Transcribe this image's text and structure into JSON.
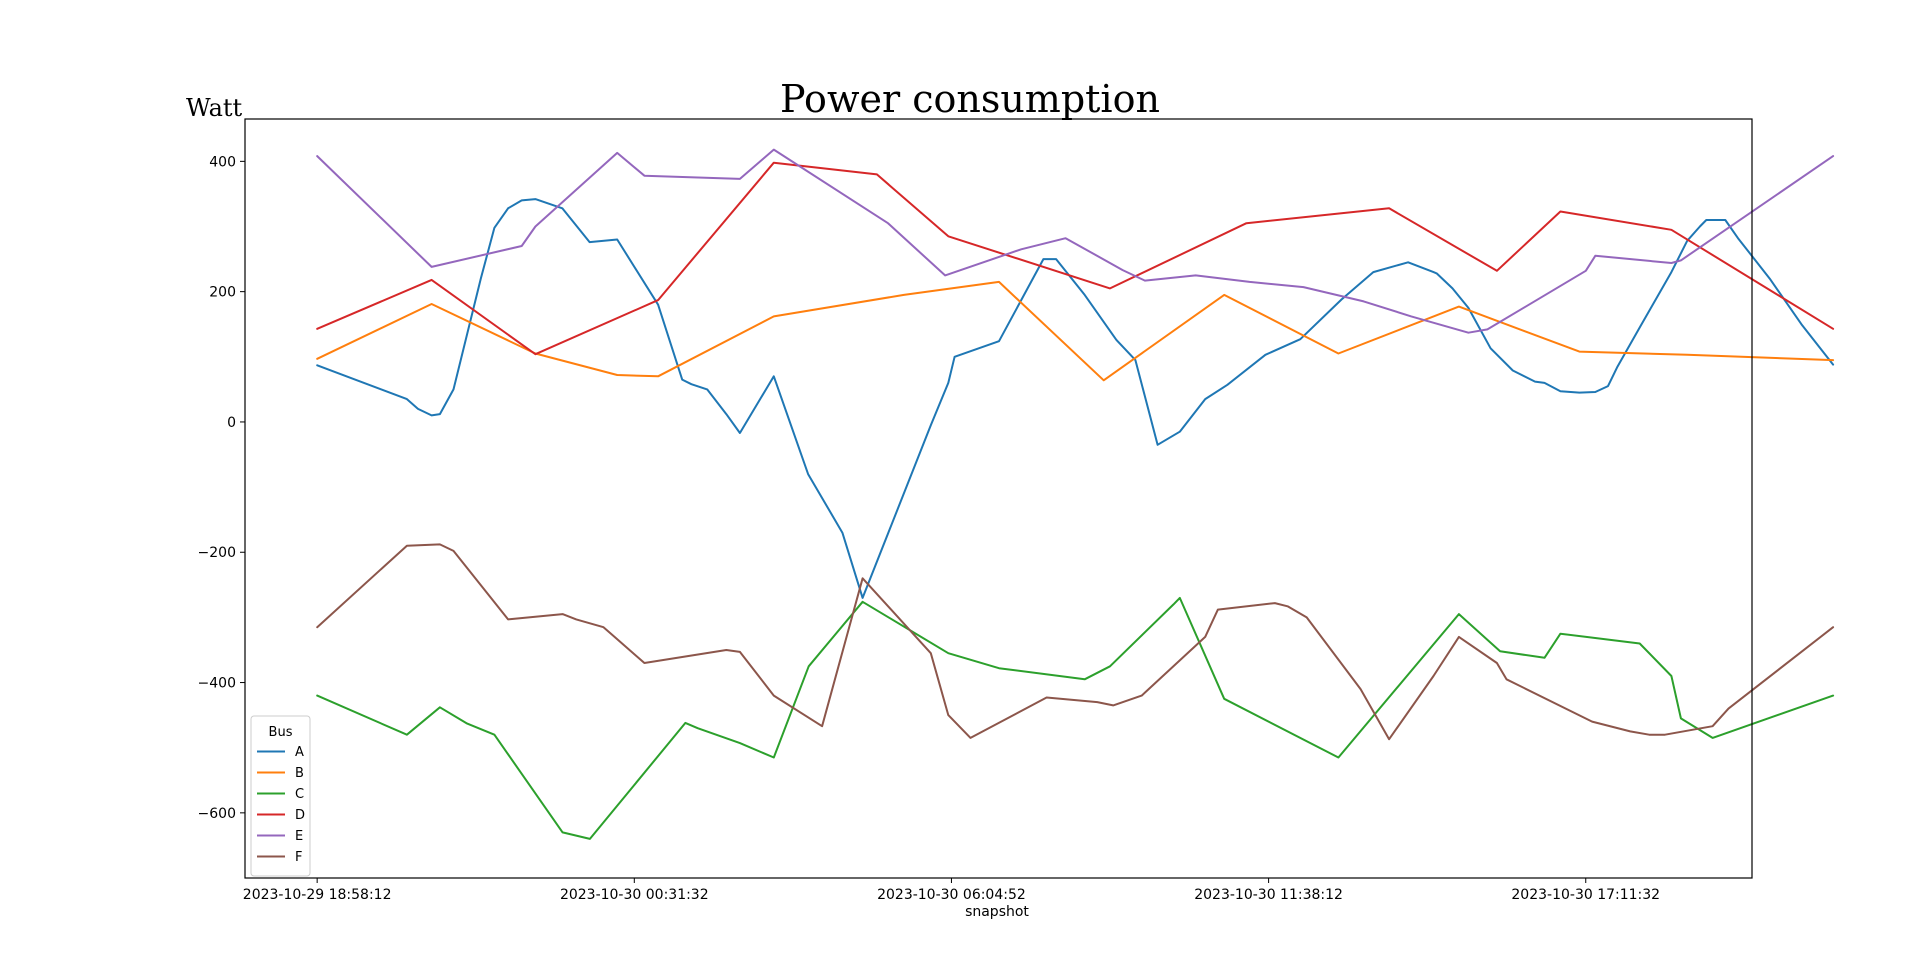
{
  "chart_data": {
    "type": "line",
    "title": "Power consumption",
    "ylabel": "Watt",
    "xlabel": "snapshot",
    "ylim": [
      -700,
      465
    ],
    "xlim": [
      -0.2275,
      4.5242
    ],
    "yticks": [
      400,
      200,
      0,
      -200,
      -400,
      -600
    ],
    "xticks": [
      {
        "label": "2023-10-29 18:58:12",
        "pos": 0
      },
      {
        "label": "2023-10-30 00:31:32",
        "pos": 1
      },
      {
        "label": "2023-10-30 06:04:52",
        "pos": 2
      },
      {
        "label": "2023-10-30 11:38:12",
        "pos": 3
      },
      {
        "label": "2023-10-30 17:11:32",
        "pos": 4
      }
    ],
    "legend": {
      "title": "Bus",
      "position": "lower-left"
    },
    "series": [
      {
        "name": "A",
        "color": "#1f77b4",
        "points": [
          [
            0,
            87
          ],
          [
            0.283,
            35
          ],
          [
            0.318,
            20
          ],
          [
            0.361,
            10
          ],
          [
            0.387,
            12
          ],
          [
            0.43,
            50
          ],
          [
            0.516,
            220
          ],
          [
            0.559,
            298
          ],
          [
            0.602,
            328
          ],
          [
            0.645,
            340
          ],
          [
            0.688,
            342
          ],
          [
            0.773,
            328
          ],
          [
            0.859,
            276
          ],
          [
            0.946,
            280
          ],
          [
            1.075,
            180
          ],
          [
            1.151,
            65
          ],
          [
            1.18,
            58
          ],
          [
            1.23,
            50
          ],
          [
            1.29,
            12
          ],
          [
            1.333,
            -17
          ],
          [
            1.44,
            70
          ],
          [
            1.548,
            -80
          ],
          [
            1.656,
            -170
          ],
          [
            1.72,
            -270
          ],
          [
            1.935,
            -5
          ],
          [
            1.99,
            60
          ],
          [
            2.01,
            100
          ],
          [
            2.15,
            124
          ],
          [
            2.29,
            250
          ],
          [
            2.33,
            250
          ],
          [
            2.42,
            195
          ],
          [
            2.52,
            126
          ],
          [
            2.58,
            95
          ],
          [
            2.65,
            -35
          ],
          [
            2.72,
            -15
          ],
          [
            2.8,
            35
          ],
          [
            2.87,
            57
          ],
          [
            2.99,
            103
          ],
          [
            3.1,
            127
          ],
          [
            3.23,
            188
          ],
          [
            3.33,
            230
          ],
          [
            3.44,
            245
          ],
          [
            3.52,
            230
          ],
          [
            3.53,
            228
          ],
          [
            3.58,
            205
          ],
          [
            3.63,
            175
          ],
          [
            3.7,
            113
          ],
          [
            3.77,
            79
          ],
          [
            3.84,
            62
          ],
          [
            3.87,
            60
          ],
          [
            3.92,
            47
          ],
          [
            3.98,
            45
          ],
          [
            4.03,
            46
          ],
          [
            4.07,
            55
          ],
          [
            4.1,
            85
          ],
          [
            4.17,
            145
          ],
          [
            4.27,
            230
          ],
          [
            4.32,
            278
          ],
          [
            4.36,
            300
          ],
          [
            4.38,
            310
          ],
          [
            4.44,
            310
          ],
          [
            4.48,
            282
          ],
          [
            4.58,
            220
          ],
          [
            4.68,
            150
          ],
          [
            4.78,
            88
          ]
        ]
      },
      {
        "name": "B",
        "color": "#ff7f0e",
        "points": [
          [
            0,
            97
          ],
          [
            0.361,
            181
          ],
          [
            0.688,
            105
          ],
          [
            0.946,
            72
          ],
          [
            1.075,
            70
          ],
          [
            1.44,
            162
          ],
          [
            1.85,
            195
          ],
          [
            2.15,
            215
          ],
          [
            2.48,
            64
          ],
          [
            2.86,
            195
          ],
          [
            3.22,
            105
          ],
          [
            3.6,
            177
          ],
          [
            3.98,
            108
          ],
          [
            4.32,
            103
          ],
          [
            4.78,
            95
          ]
        ]
      },
      {
        "name": "C",
        "color": "#2ca02c",
        "points": [
          [
            0,
            -420
          ],
          [
            0.283,
            -480
          ],
          [
            0.387,
            -438
          ],
          [
            0.473,
            -463
          ],
          [
            0.559,
            -480
          ],
          [
            0.774,
            -630
          ],
          [
            0.86,
            -640
          ],
          [
            1.161,
            -462
          ],
          [
            1.2,
            -470
          ],
          [
            1.333,
            -493
          ],
          [
            1.44,
            -515
          ],
          [
            1.55,
            -375
          ],
          [
            1.72,
            -276
          ],
          [
            1.99,
            -355
          ],
          [
            2.15,
            -378
          ],
          [
            2.42,
            -395
          ],
          [
            2.5,
            -375
          ],
          [
            2.7,
            -280
          ],
          [
            2.72,
            -270
          ],
          [
            2.86,
            -425
          ],
          [
            3.22,
            -515
          ],
          [
            3.6,
            -295
          ],
          [
            3.73,
            -352
          ],
          [
            3.87,
            -362
          ],
          [
            3.92,
            -325
          ],
          [
            4.17,
            -340
          ],
          [
            4.27,
            -390
          ],
          [
            4.3,
            -455
          ],
          [
            4.4,
            -485
          ],
          [
            4.78,
            -420
          ]
        ]
      },
      {
        "name": "D",
        "color": "#d62728",
        "points": [
          [
            0,
            143
          ],
          [
            0.361,
            218
          ],
          [
            0.688,
            104
          ],
          [
            1.075,
            187
          ],
          [
            1.44,
            398
          ],
          [
            1.765,
            380
          ],
          [
            1.99,
            285
          ],
          [
            2.5,
            205
          ],
          [
            2.93,
            305
          ],
          [
            3.38,
            328
          ],
          [
            3.72,
            232
          ],
          [
            3.92,
            323
          ],
          [
            4.27,
            295
          ],
          [
            4.78,
            143
          ]
        ]
      },
      {
        "name": "E",
        "color": "#9467bd",
        "points": [
          [
            0,
            408
          ],
          [
            0.361,
            238
          ],
          [
            0.645,
            270
          ],
          [
            0.688,
            300
          ],
          [
            0.946,
            413
          ],
          [
            1.032,
            378
          ],
          [
            1.333,
            373
          ],
          [
            1.44,
            418
          ],
          [
            1.8,
            305
          ],
          [
            1.98,
            225
          ],
          [
            2.22,
            265
          ],
          [
            2.36,
            282
          ],
          [
            2.54,
            233
          ],
          [
            2.61,
            217
          ],
          [
            2.77,
            225
          ],
          [
            2.94,
            215
          ],
          [
            3.11,
            207
          ],
          [
            3.3,
            185
          ],
          [
            3.45,
            162
          ],
          [
            3.63,
            137
          ],
          [
            3.69,
            142
          ],
          [
            4,
            232
          ],
          [
            4.03,
            255
          ],
          [
            4.27,
            244
          ],
          [
            4.3,
            248
          ],
          [
            4.78,
            408
          ]
        ]
      },
      {
        "name": "F",
        "color": "#8c564b",
        "points": [
          [
            0,
            -315
          ],
          [
            0.283,
            -190
          ],
          [
            0.387,
            -188
          ],
          [
            0.43,
            -198
          ],
          [
            0.602,
            -303
          ],
          [
            0.774,
            -295
          ],
          [
            0.817,
            -303
          ],
          [
            0.903,
            -315
          ],
          [
            1.032,
            -370
          ],
          [
            1.29,
            -350
          ],
          [
            1.333,
            -353
          ],
          [
            1.44,
            -420
          ],
          [
            1.592,
            -467
          ],
          [
            1.72,
            -240
          ],
          [
            1.935,
            -355
          ],
          [
            1.99,
            -450
          ],
          [
            2.06,
            -485
          ],
          [
            2.3,
            -423
          ],
          [
            2.46,
            -430
          ],
          [
            2.51,
            -435
          ],
          [
            2.6,
            -420
          ],
          [
            2.8,
            -330
          ],
          [
            2.84,
            -288
          ],
          [
            3.02,
            -278
          ],
          [
            3.06,
            -283
          ],
          [
            3.12,
            -300
          ],
          [
            3.29,
            -410
          ],
          [
            3.38,
            -487
          ],
          [
            3.52,
            -390
          ],
          [
            3.6,
            -330
          ],
          [
            3.72,
            -370
          ],
          [
            3.75,
            -395
          ],
          [
            4.02,
            -460
          ],
          [
            4.14,
            -475
          ],
          [
            4.2,
            -480
          ],
          [
            4.25,
            -480
          ],
          [
            4.4,
            -467
          ],
          [
            4.45,
            -440
          ],
          [
            4.78,
            -315
          ]
        ]
      }
    ]
  }
}
